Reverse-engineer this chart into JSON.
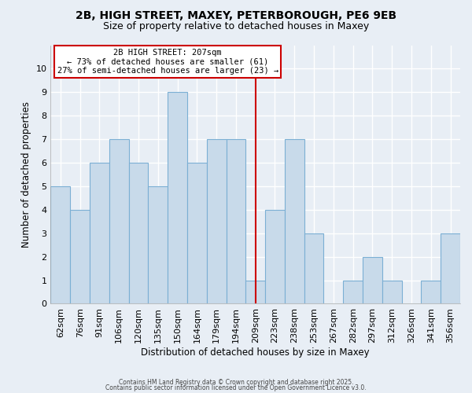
{
  "title": "2B, HIGH STREET, MAXEY, PETERBOROUGH, PE6 9EB",
  "subtitle": "Size of property relative to detached houses in Maxey",
  "xlabel": "Distribution of detached houses by size in Maxey",
  "ylabel": "Number of detached properties",
  "bar_labels": [
    "62sqm",
    "76sqm",
    "91sqm",
    "106sqm",
    "120sqm",
    "135sqm",
    "150sqm",
    "164sqm",
    "179sqm",
    "194sqm",
    "209sqm",
    "223sqm",
    "238sqm",
    "253sqm",
    "267sqm",
    "282sqm",
    "297sqm",
    "312sqm",
    "326sqm",
    "341sqm",
    "356sqm"
  ],
  "bar_values": [
    5,
    4,
    6,
    7,
    6,
    5,
    9,
    6,
    7,
    7,
    1,
    4,
    7,
    3,
    0,
    1,
    2,
    1,
    0,
    1,
    3
  ],
  "bar_color": "#c8daea",
  "bar_edgecolor": "#7bafd4",
  "vline_x": 10,
  "vline_color": "#cc0000",
  "annotation_title": "2B HIGH STREET: 207sqm",
  "annotation_line1": "← 73% of detached houses are smaller (61)",
  "annotation_line2": "27% of semi-detached houses are larger (23) →",
  "annotation_box_edgecolor": "#cc0000",
  "ylim": [
    0,
    11
  ],
  "yticks": [
    0,
    1,
    2,
    3,
    4,
    5,
    6,
    7,
    8,
    9,
    10
  ],
  "background_color": "#e8eef5",
  "grid_color": "#ffffff",
  "footer1": "Contains HM Land Registry data © Crown copyright and database right 2025.",
  "footer2": "Contains public sector information licensed under the Open Government Licence v3.0."
}
